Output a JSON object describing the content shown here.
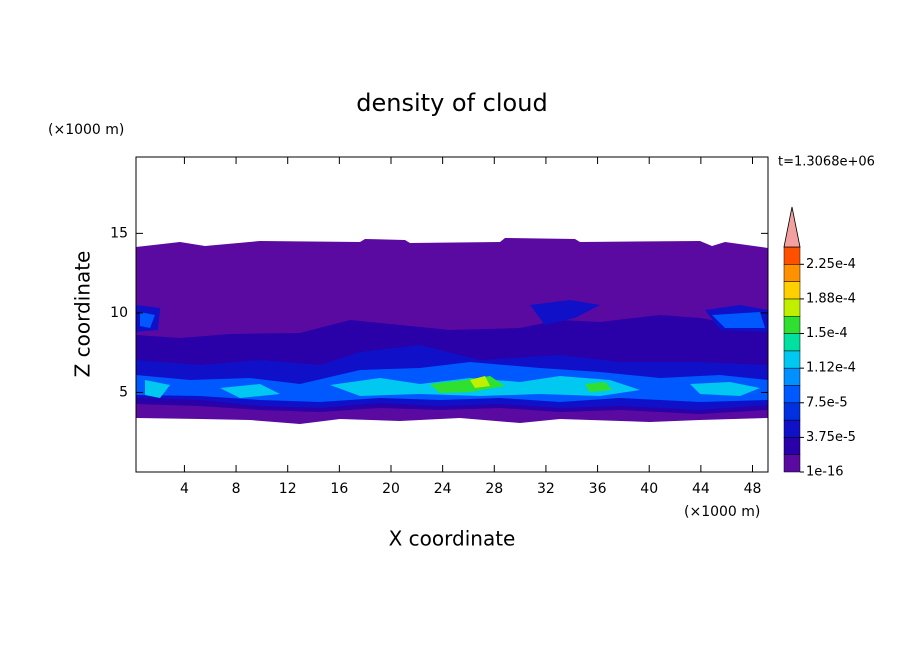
{
  "chart_data": {
    "type": "contour",
    "title": "density of cloud",
    "x_label": "X coordinate",
    "y_label": "Z coordinate",
    "x_unit": "(×1000 m)",
    "y_unit": "(×1000 m)",
    "time_label": "t=1.3068e+06",
    "xlim": [
      0.25,
      49.2
    ],
    "xticks": [
      4,
      8,
      12,
      16,
      20,
      24,
      28,
      32,
      36,
      40,
      44,
      48
    ],
    "ylim": [
      0,
      19.8
    ],
    "yticks": [
      5,
      10,
      15
    ],
    "colorbar": {
      "levels": [
        1e-16,
        1.875e-05,
        3.75e-05,
        5.625e-05,
        7.5e-05,
        9.375e-05,
        0.0001125,
        0.00013125,
        0.00015,
        0.00016875,
        0.0001875,
        0.00020625,
        0.000225,
        0.00024375
      ],
      "colors": [
        "#5a0aa0",
        "#2a00a8",
        "#1010c8",
        "#0030e0",
        "#0058ff",
        "#0090ff",
        "#00c8f0",
        "#00e0a0",
        "#30e030",
        "#c0f000",
        "#ffd000",
        "#ff9000",
        "#ff5000"
      ],
      "over_color": "#f4a0a0",
      "ticks": [
        {
          "value": 1e-16,
          "label": "1e-16"
        },
        {
          "value": 3.75e-05,
          "label": "3.75e-5"
        },
        {
          "value": 7.5e-05,
          "label": "7.5e-5"
        },
        {
          "value": 0.0001125,
          "label": "1.12e-4"
        },
        {
          "value": 0.00015,
          "label": "1.5e-4"
        },
        {
          "value": 0.0001875,
          "label": "1.88e-4"
        },
        {
          "value": 0.000225,
          "label": "2.25e-4"
        }
      ]
    }
  }
}
